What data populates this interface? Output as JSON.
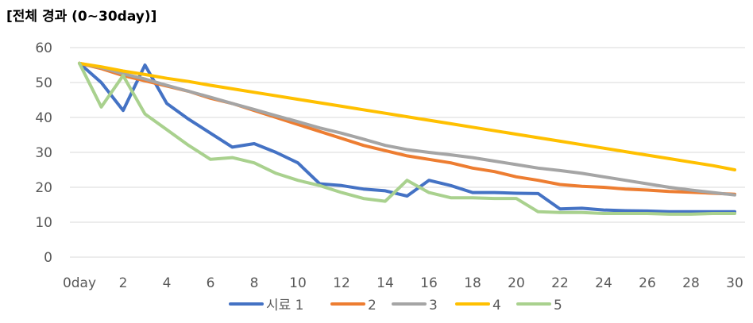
{
  "chart_data": {
    "type": "line",
    "title": "[전체 경과 (0~30day)]",
    "xlabel": "",
    "ylabel": "",
    "x": [
      0,
      1,
      2,
      3,
      4,
      5,
      6,
      7,
      8,
      9,
      10,
      11,
      12,
      13,
      14,
      15,
      16,
      17,
      18,
      19,
      20,
      21,
      22,
      23,
      24,
      25,
      26,
      27,
      28,
      29,
      30
    ],
    "x_tick_labels": [
      "0day",
      "2",
      "4",
      "6",
      "8",
      "10",
      "12",
      "14",
      "16",
      "18",
      "20",
      "22",
      "24",
      "26",
      "28",
      "30"
    ],
    "x_tick_values": [
      0,
      2,
      4,
      6,
      8,
      10,
      12,
      14,
      16,
      18,
      20,
      22,
      24,
      26,
      28,
      30
    ],
    "y_ticks": [
      0,
      10,
      20,
      30,
      40,
      50,
      60
    ],
    "ylim": [
      0,
      60
    ],
    "xlim": [
      0,
      30
    ],
    "grid": "horizontal",
    "legend": "bottom",
    "series": [
      {
        "name": "시료 1",
        "color": "#4472C4",
        "values": [
          55.5,
          50,
          42,
          55,
          44,
          39.5,
          35.5,
          31.5,
          32.5,
          30,
          27,
          21,
          20.5,
          19.5,
          19,
          17.5,
          22,
          20.5,
          18.5,
          18.5,
          18.3,
          18.2,
          13.8,
          14,
          13.5,
          13.3,
          13.2,
          13,
          13,
          13,
          13
        ]
      },
      {
        "name": "2",
        "color": "#ED7D31",
        "values": [
          55.5,
          54,
          52,
          50.5,
          49,
          47.5,
          45.5,
          44,
          42,
          40,
          38,
          36,
          34,
          32,
          30.5,
          29,
          28,
          27,
          25.5,
          24.5,
          23,
          22,
          20.8,
          20.3,
          20,
          19.5,
          19.2,
          18.8,
          18.6,
          18.3,
          18
        ]
      },
      {
        "name": "3",
        "color": "#A5A5A5",
        "values": [
          55.5,
          54.3,
          52.5,
          51,
          49.2,
          47.5,
          45.8,
          44,
          42.3,
          40.5,
          38.8,
          37,
          35.5,
          33.8,
          32,
          30.8,
          30,
          29.3,
          28.5,
          27.5,
          26.5,
          25.5,
          24.8,
          24,
          23,
          22,
          21,
          20,
          19.2,
          18.5,
          17.8
        ]
      },
      {
        "name": "4",
        "color": "#FFC000",
        "values": [
          55.5,
          54.5,
          53.3,
          52.3,
          51.2,
          50.3,
          49.2,
          48.2,
          47.2,
          46.2,
          45.2,
          44.2,
          43.2,
          42.2,
          41.2,
          40.2,
          39.2,
          38.2,
          37.2,
          36.2,
          35.2,
          34.2,
          33.2,
          32.2,
          31.2,
          30.2,
          29.2,
          28.2,
          27.2,
          26.2,
          25
        ]
      },
      {
        "name": "5",
        "color": "#A9D18E",
        "values": [
          55.5,
          43,
          52,
          41,
          36.5,
          32,
          28,
          28.5,
          27,
          24,
          22,
          20.5,
          18.5,
          16.8,
          16,
          22,
          18.5,
          17,
          17,
          16.8,
          16.8,
          13,
          12.8,
          12.8,
          12.5,
          12.5,
          12.5,
          12.3,
          12.3,
          12.5,
          12.5
        ]
      }
    ]
  }
}
